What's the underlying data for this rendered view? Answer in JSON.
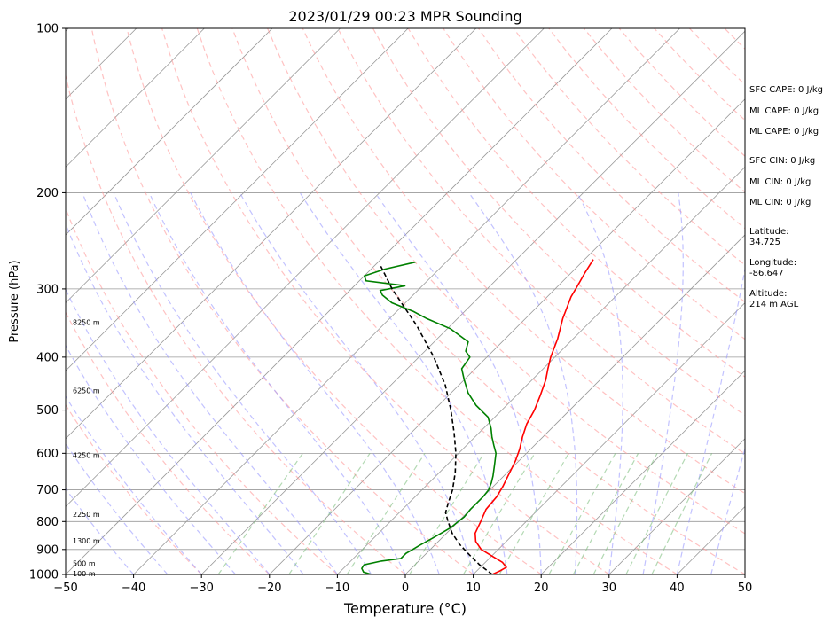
{
  "chart_data": {
    "type": "line",
    "title": "2023/01/29 00:23 MPR Sounding",
    "xlabel": "Temperature (°C)",
    "ylabel": "Pressure (hPa)",
    "xlim": [
      -50,
      50
    ],
    "ylim": [
      1000,
      100
    ],
    "y_scale": "log",
    "grid": true,
    "x_ticks": [
      "−50",
      "−40",
      "−30",
      "−20",
      "−10",
      "0",
      "10",
      "20",
      "30",
      "40",
      "50"
    ],
    "y_ticks": [
      "100",
      "200",
      "300",
      "400",
      "500",
      "600",
      "700",
      "800",
      "900",
      "1000"
    ],
    "height_labels": [
      {
        "label": "100 m",
        "p": 997
      },
      {
        "label": "500 m",
        "p": 955
      },
      {
        "label": "1300 m",
        "p": 868
      },
      {
        "label": "2250 m",
        "p": 775
      },
      {
        "label": "4250 m",
        "p": 605
      },
      {
        "label": "6250 m",
        "p": 460
      },
      {
        "label": "8250 m",
        "p": 345
      }
    ],
    "series": [
      {
        "role": "temperature",
        "color": "#ff0000",
        "style": "solid",
        "points": [
          [
            1000,
            12.8
          ],
          [
            985,
            13.4
          ],
          [
            970,
            13.8
          ],
          [
            950,
            12.5
          ],
          [
            925,
            10.0
          ],
          [
            900,
            7.5
          ],
          [
            870,
            5.5
          ],
          [
            840,
            4.2
          ],
          [
            800,
            3.3
          ],
          [
            760,
            2.3
          ],
          [
            720,
            2.0
          ],
          [
            690,
            1.4
          ],
          [
            660,
            0.6
          ],
          [
            620,
            -0.5
          ],
          [
            590,
            -1.6
          ],
          [
            560,
            -3.0
          ],
          [
            530,
            -4.3
          ],
          [
            500,
            -5.2
          ],
          [
            470,
            -6.5
          ],
          [
            440,
            -8.0
          ],
          [
            420,
            -9.3
          ],
          [
            400,
            -10.6
          ],
          [
            370,
            -12.3
          ],
          [
            340,
            -14.5
          ],
          [
            310,
            -16.5
          ],
          [
            295,
            -17.2
          ],
          [
            280,
            -18.0
          ],
          [
            265,
            -18.7
          ]
        ]
      },
      {
        "role": "dewpoint",
        "color": "#008000",
        "style": "solid",
        "points": [
          [
            1000,
            -5.0
          ],
          [
            990,
            -6.5
          ],
          [
            975,
            -7.3
          ],
          [
            960,
            -7.5
          ],
          [
            945,
            -5.5
          ],
          [
            935,
            -3.0
          ],
          [
            915,
            -3.0
          ],
          [
            900,
            -2.6
          ],
          [
            885,
            -2.2
          ],
          [
            860,
            -1.4
          ],
          [
            840,
            -0.8
          ],
          [
            820,
            -0.2
          ],
          [
            800,
            0.0
          ],
          [
            785,
            0.2
          ],
          [
            760,
            0.0
          ],
          [
            740,
            0.0
          ],
          [
            720,
            0.0
          ],
          [
            700,
            -0.2
          ],
          [
            680,
            -0.8
          ],
          [
            660,
            -1.6
          ],
          [
            630,
            -3.0
          ],
          [
            600,
            -4.5
          ],
          [
            580,
            -6.0
          ],
          [
            560,
            -7.5
          ],
          [
            540,
            -8.9
          ],
          [
            515,
            -11.0
          ],
          [
            490,
            -14.5
          ],
          [
            465,
            -17.5
          ],
          [
            440,
            -20.0
          ],
          [
            420,
            -22.0
          ],
          [
            400,
            -22.5
          ],
          [
            390,
            -24.0
          ],
          [
            375,
            -25.0
          ],
          [
            355,
            -29.5
          ],
          [
            340,
            -34.5
          ],
          [
            330,
            -37.5
          ],
          [
            318,
            -42.0
          ],
          [
            308,
            -44.5
          ],
          [
            302,
            -45.5
          ],
          [
            296,
            -42.5
          ],
          [
            290,
            -49.0
          ],
          [
            284,
            -50.0
          ],
          [
            276,
            -48.0
          ],
          [
            268,
            -44.5
          ]
        ]
      },
      {
        "role": "parcel",
        "color": "#000000",
        "style": "dashed",
        "points": [
          [
            1000,
            12.8
          ],
          [
            960,
            9.5
          ],
          [
            920,
            6.5
          ],
          [
            880,
            3.5
          ],
          [
            840,
            0.8
          ],
          [
            800,
            -1.5
          ],
          [
            770,
            -3.2
          ],
          [
            740,
            -4.2
          ],
          [
            700,
            -5.5
          ],
          [
            650,
            -7.7
          ],
          [
            600,
            -10.4
          ],
          [
            550,
            -13.7
          ],
          [
            500,
            -17.5
          ],
          [
            450,
            -22.0
          ],
          [
            400,
            -27.8
          ],
          [
            350,
            -35.0
          ],
          [
            300,
            -44.0
          ],
          [
            270,
            -49.5
          ]
        ]
      }
    ],
    "side_text": [
      "SFC CAPE: 0 J/kg",
      "ML CAPE: 0 J/kg",
      "ML CAPE: 0 J/kg",
      "SFC CIN: 0 J/kg",
      "ML CIN: 0 J/kg",
      "ML CIN: 0 J/kg",
      "Latitude:",
      "34.725",
      "Longitude:",
      "-86.647",
      "Altitude:",
      "214 m AGL"
    ],
    "colors": {
      "temperature": "#ff0000",
      "dewpoint": "#008000",
      "parcel": "#000000",
      "dry_adiabats": "#ff9999",
      "moist_adiabats": "#9999ff",
      "mixing_ratio": "#80c080",
      "isotherms": "#999999"
    }
  }
}
